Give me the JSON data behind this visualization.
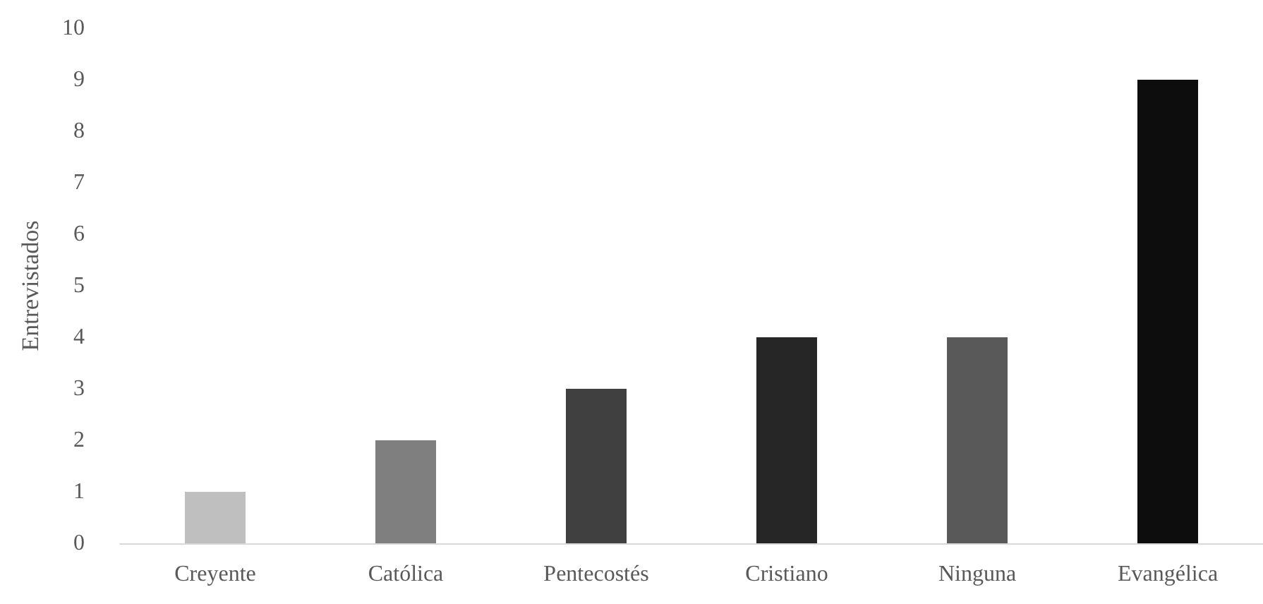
{
  "chart_data": {
    "type": "bar",
    "ylabel": "Entrevistados",
    "categories": [
      "Creyente",
      "Católica",
      "Pentecostés",
      "Cristiano",
      "Ninguna",
      "Evangélica"
    ],
    "values": [
      1,
      2,
      3,
      4,
      4,
      9
    ],
    "colors": [
      "#bfbfbf",
      "#7f7f7f",
      "#404040",
      "#262626",
      "#595959",
      "#0d0d0d"
    ],
    "ylim": [
      0,
      10
    ],
    "yticks": [
      0,
      1,
      2,
      3,
      4,
      5,
      6,
      7,
      8,
      9,
      10
    ],
    "grid": false
  }
}
